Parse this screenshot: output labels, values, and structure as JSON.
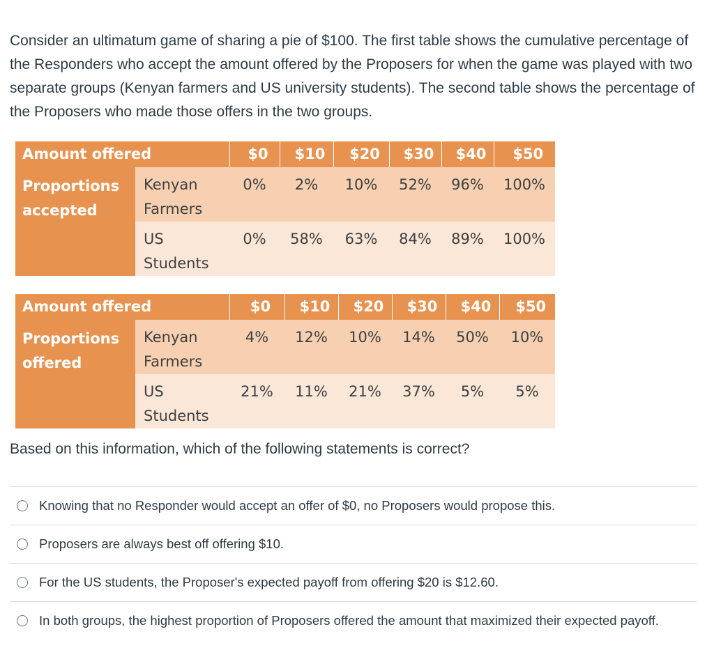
{
  "question": {
    "text": "Consider an ultimatum game of sharing a pie of $100. The first table shows the cumulative percentage of the Responders who accept the amount offered by the Proposers for when the game was played with two separate groups (Kenyan farmers and US university students). The second table shows the percentage of the Proposers who made those offers in the two groups."
  },
  "table1": {
    "header_label": "Amount offered",
    "amounts": [
      "$0",
      "$10",
      "$20",
      "$30",
      "$40",
      "$50"
    ],
    "row_label": "Proportions accepted",
    "rows": [
      {
        "group": "Kenyan Farmers",
        "values": [
          "0%",
          "2%",
          "10%",
          "52%",
          "96%",
          "100%"
        ]
      },
      {
        "group": "US Students",
        "values": [
          "0%",
          "58%",
          "63%",
          "84%",
          "89%",
          "100%"
        ]
      }
    ]
  },
  "table2": {
    "header_label": "Amount offered",
    "amounts": [
      "$0",
      "$10",
      "$20",
      "$30",
      "$40",
      "$50"
    ],
    "row_label": "Proportions offered",
    "rows": [
      {
        "group": "Kenyan Farmers",
        "values": [
          "4%",
          "12%",
          "10%",
          "14%",
          "50%",
          "10%"
        ]
      },
      {
        "group": "US Students",
        "values": [
          "21%",
          "11%",
          "21%",
          "37%",
          "5%",
          "5%"
        ]
      }
    ]
  },
  "prompt": "Based on this information, which of the following statements is correct?",
  "answers": [
    "Knowing that no Responder would accept an offer of $0, no Proposers would propose this.",
    "Proposers are always best off offering $10.",
    "For the US students, the Proposer's expected payoff from offering $20 is $12.60.",
    "In both groups, the highest proportion of Proposers offered the amount that maximized their expected payoff."
  ]
}
